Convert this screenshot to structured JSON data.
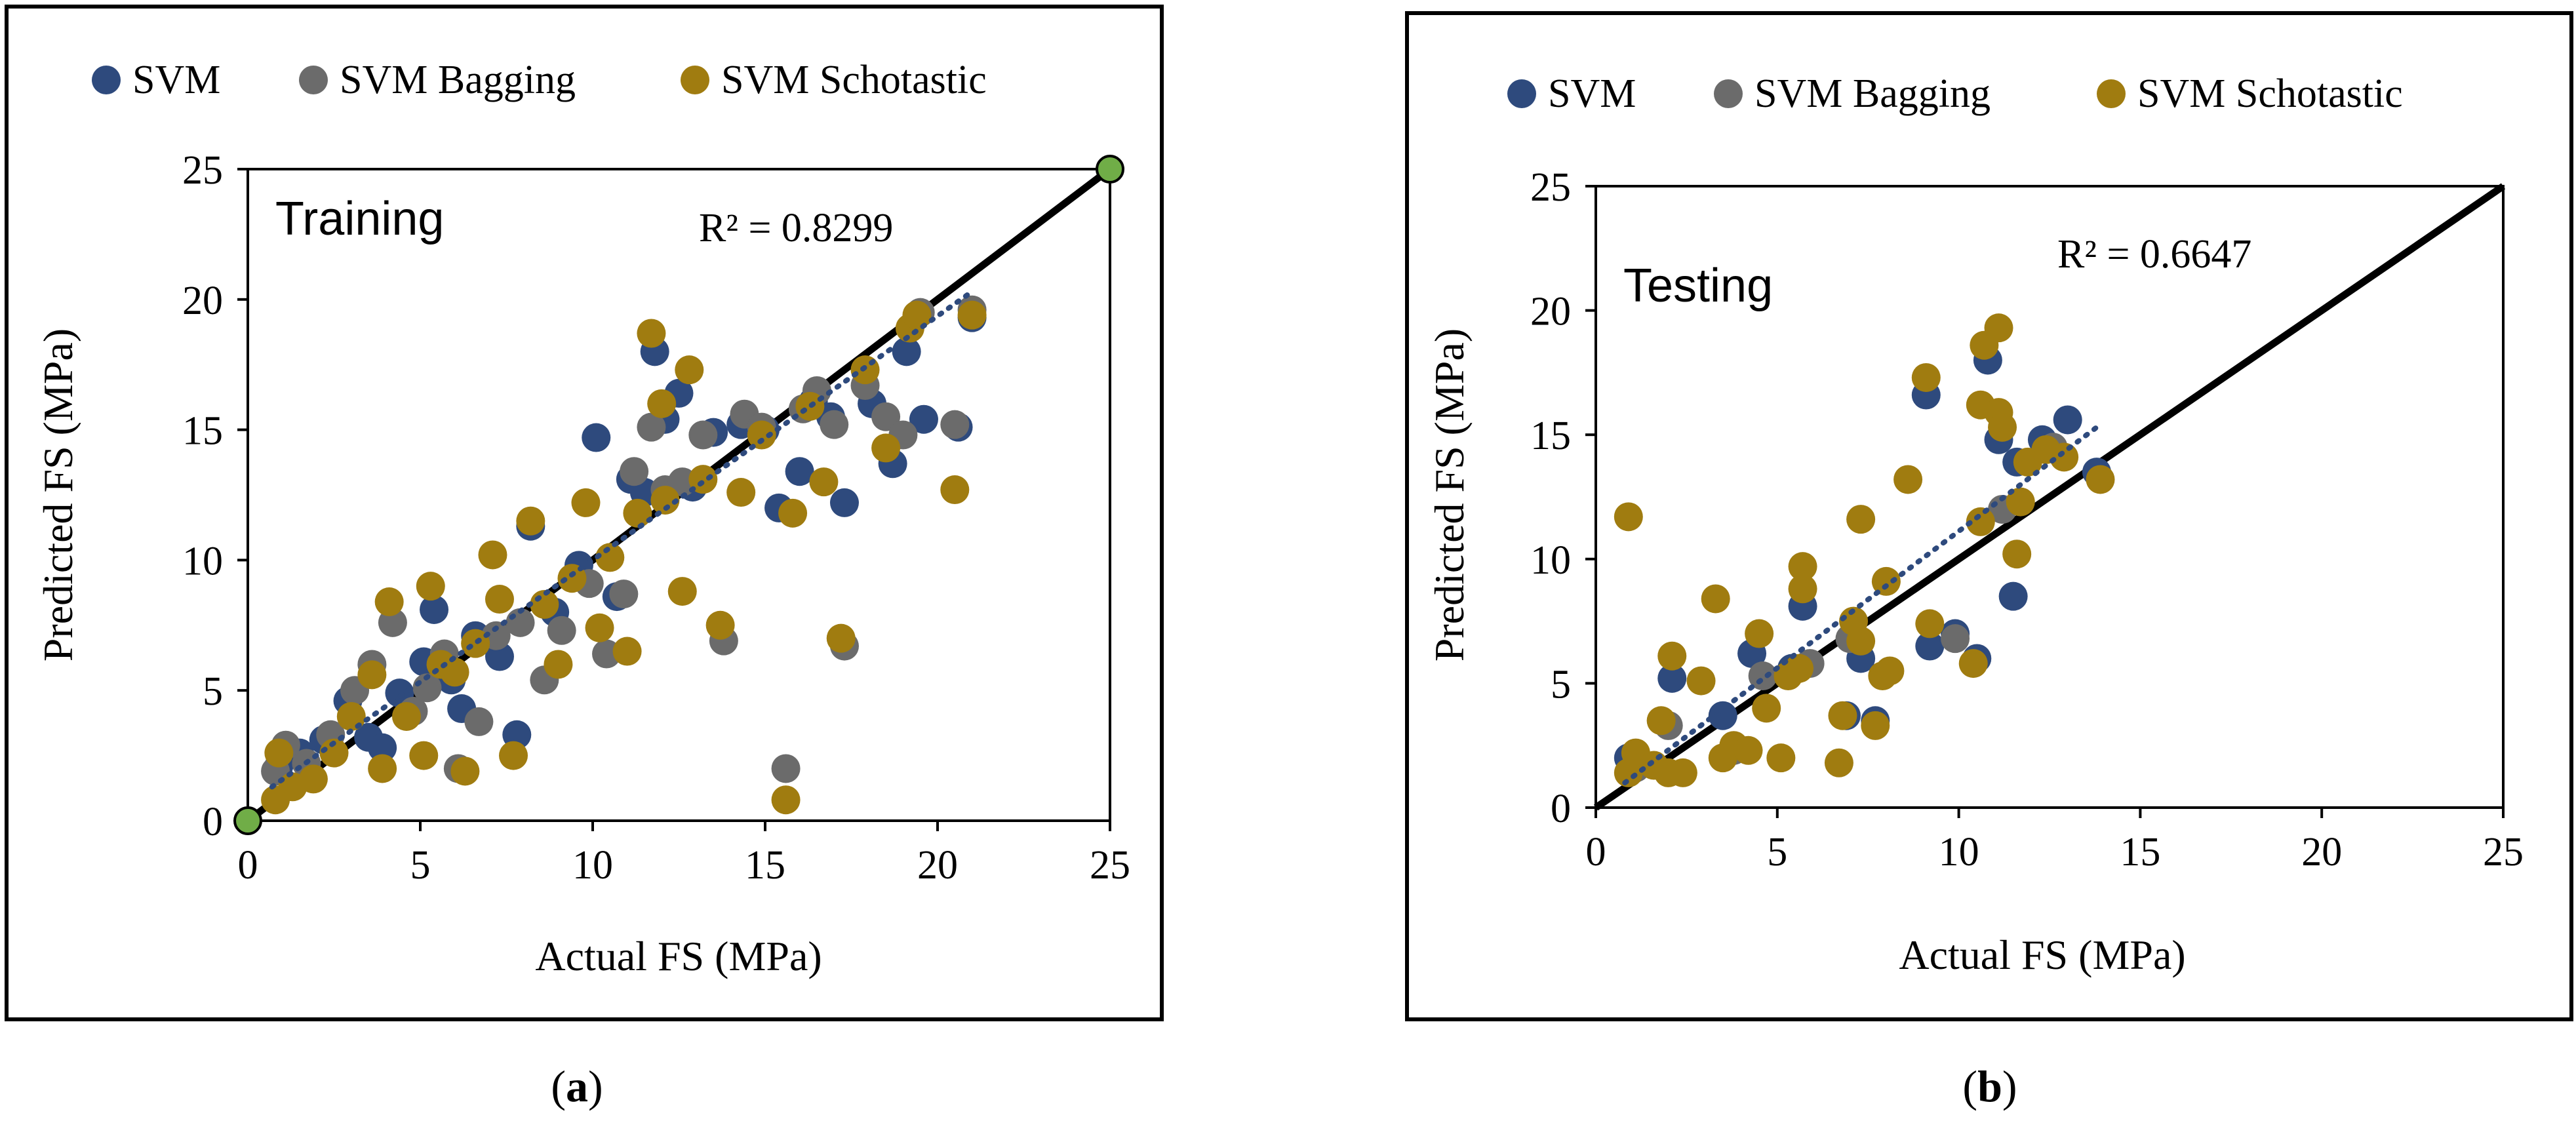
{
  "colors": {
    "svm": "#2e4a7d",
    "svm_bagging": "#6b6b6b",
    "svm_stochastic": "#a07c10",
    "endpoint": "#70ad47",
    "trend": "#2e4a7d",
    "ideal": "#000000"
  },
  "legend": {
    "svm": "SVM",
    "svm_bagging": "SVM Bagging",
    "svm_stochastic": "SVM Schotastic"
  },
  "chart_data": [
    {
      "type": "scatter",
      "panel_label": "(a)",
      "annotation": "Training",
      "r2_text": "R² = 0.8299",
      "xlabel": "Actual FS (MPa)",
      "ylabel": "Predicted FS (MPa)",
      "xlim": [
        0,
        25
      ],
      "ylim": [
        0,
        25
      ],
      "xticks": [
        "0",
        "5",
        "10",
        "15",
        "20",
        "25"
      ],
      "yticks": [
        "0",
        "5",
        "10",
        "15",
        "20",
        "25"
      ],
      "legend_position": "top",
      "grid": false,
      "ideal_line": [
        [
          0,
          0
        ],
        [
          25,
          25
        ]
      ],
      "endpoints": [
        [
          0,
          0
        ],
        [
          25,
          25
        ]
      ],
      "trendline": [
        [
          0.7,
          1.3
        ],
        [
          21,
          20.3
        ]
      ],
      "series": [
        {
          "name": "SVM",
          "points": [
            [
              0.9,
              2.1
            ],
            [
              1.5,
              2.6
            ],
            [
              2.2,
              3.1
            ],
            [
              2.9,
              4.6
            ],
            [
              3.5,
              3.2
            ],
            [
              3.9,
              2.8
            ],
            [
              4.4,
              4.9
            ],
            [
              5.1,
              6.1
            ],
            [
              5.4,
              8.1
            ],
            [
              5.9,
              5.4
            ],
            [
              6.2,
              4.3
            ],
            [
              6.6,
              7.1
            ],
            [
              7.3,
              6.3
            ],
            [
              7.8,
              3.3
            ],
            [
              8.2,
              11.3
            ],
            [
              8.9,
              8.0
            ],
            [
              9.6,
              9.8
            ],
            [
              10.1,
              14.7
            ],
            [
              10.7,
              8.6
            ],
            [
              11.1,
              13.1
            ],
            [
              11.5,
              12.6
            ],
            [
              11.8,
              18.0
            ],
            [
              12.1,
              15.4
            ],
            [
              12.5,
              16.4
            ],
            [
              12.9,
              12.8
            ],
            [
              13.5,
              14.9
            ],
            [
              14.3,
              15.2
            ],
            [
              15.0,
              15.0
            ],
            [
              15.4,
              12.0
            ],
            [
              16.0,
              13.4
            ],
            [
              16.4,
              16.1
            ],
            [
              16.9,
              15.5
            ],
            [
              17.3,
              12.2
            ],
            [
              18.1,
              16.0
            ],
            [
              18.7,
              13.7
            ],
            [
              19.1,
              18.0
            ],
            [
              19.6,
              15.4
            ],
            [
              20.6,
              15.1
            ],
            [
              21.0,
              19.3
            ]
          ]
        },
        {
          "name": "SVM Bagging",
          "points": [
            [
              0.8,
              1.9
            ],
            [
              1.1,
              2.9
            ],
            [
              1.7,
              2.2
            ],
            [
              2.4,
              3.3
            ],
            [
              3.1,
              5.0
            ],
            [
              3.6,
              6.0
            ],
            [
              4.2,
              7.6
            ],
            [
              4.8,
              4.2
            ],
            [
              5.2,
              5.1
            ],
            [
              5.7,
              6.4
            ],
            [
              6.1,
              2.0
            ],
            [
              6.7,
              3.8
            ],
            [
              7.2,
              7.1
            ],
            [
              7.9,
              7.6
            ],
            [
              8.6,
              5.4
            ],
            [
              9.1,
              7.3
            ],
            [
              9.9,
              9.1
            ],
            [
              10.4,
              6.4
            ],
            [
              10.9,
              8.7
            ],
            [
              11.2,
              13.4
            ],
            [
              11.7,
              15.1
            ],
            [
              12.1,
              12.7
            ],
            [
              12.6,
              13.0
            ],
            [
              13.2,
              14.8
            ],
            [
              13.8,
              6.9
            ],
            [
              14.4,
              15.6
            ],
            [
              14.9,
              15.1
            ],
            [
              15.6,
              2.0
            ],
            [
              16.1,
              15.8
            ],
            [
              16.5,
              16.5
            ],
            [
              17.0,
              15.2
            ],
            [
              17.3,
              6.7
            ],
            [
              17.9,
              16.7
            ],
            [
              18.5,
              15.5
            ],
            [
              19.0,
              14.8
            ],
            [
              19.5,
              19.5
            ],
            [
              20.5,
              15.2
            ],
            [
              21.0,
              19.6
            ]
          ]
        },
        {
          "name": "SVM Schotastic",
          "points": [
            [
              0.8,
              0.8
            ],
            [
              0.9,
              2.6
            ],
            [
              1.3,
              1.3
            ],
            [
              1.9,
              1.6
            ],
            [
              2.5,
              2.6
            ],
            [
              3.0,
              4.0
            ],
            [
              3.6,
              5.6
            ],
            [
              3.9,
              2.0
            ],
            [
              4.1,
              8.4
            ],
            [
              4.6,
              4.0
            ],
            [
              5.1,
              2.5
            ],
            [
              5.3,
              9.0
            ],
            [
              5.6,
              6.0
            ],
            [
              6.0,
              5.7
            ],
            [
              6.3,
              1.9
            ],
            [
              6.6,
              6.8
            ],
            [
              7.1,
              10.2
            ],
            [
              7.3,
              8.5
            ],
            [
              7.7,
              2.5
            ],
            [
              8.2,
              11.5
            ],
            [
              8.6,
              8.3
            ],
            [
              9.0,
              6.0
            ],
            [
              9.4,
              9.3
            ],
            [
              9.8,
              12.2
            ],
            [
              10.2,
              7.4
            ],
            [
              10.5,
              10.1
            ],
            [
              11.0,
              6.5
            ],
            [
              11.3,
              11.8
            ],
            [
              11.7,
              18.7
            ],
            [
              12.0,
              16.0
            ],
            [
              12.1,
              12.3
            ],
            [
              12.6,
              8.8
            ],
            [
              12.8,
              17.3
            ],
            [
              13.2,
              13.1
            ],
            [
              13.7,
              7.5
            ],
            [
              14.3,
              12.6
            ],
            [
              14.9,
              14.8
            ],
            [
              15.6,
              0.8
            ],
            [
              15.8,
              11.8
            ],
            [
              16.3,
              15.9
            ],
            [
              16.7,
              13.0
            ],
            [
              17.2,
              7.0
            ],
            [
              17.9,
              17.3
            ],
            [
              18.5,
              14.3
            ],
            [
              19.2,
              18.9
            ],
            [
              19.4,
              19.4
            ],
            [
              20.5,
              12.7
            ],
            [
              21.0,
              19.4
            ]
          ]
        }
      ]
    },
    {
      "type": "scatter",
      "panel_label": "(b)",
      "annotation": "Testing",
      "r2_text": "R² = 0.6647",
      "xlabel": "Actual FS (MPa)",
      "ylabel": "Predicted  FS (MPa)",
      "xlim": [
        0,
        25
      ],
      "ylim": [
        0,
        25
      ],
      "xticks": [
        "0",
        "5",
        "10",
        "15",
        "20",
        "25"
      ],
      "yticks": [
        "0",
        "5",
        "10",
        "15",
        "20",
        "25"
      ],
      "legend_position": "top",
      "grid": false,
      "ideal_line": [
        [
          0,
          0
        ],
        [
          25,
          25
        ]
      ],
      "trendline": [
        [
          0.8,
          1.0
        ],
        [
          13.8,
          15.3
        ]
      ],
      "series": [
        {
          "name": "SVM",
          "points": [
            [
              0.9,
              2.0
            ],
            [
              2.1,
              5.2
            ],
            [
              3.5,
              3.7
            ],
            [
              4.3,
              6.2
            ],
            [
              5.4,
              5.6
            ],
            [
              5.7,
              8.1
            ],
            [
              6.9,
              3.7
            ],
            [
              7.3,
              6.0
            ],
            [
              7.7,
              3.5
            ],
            [
              9.1,
              16.6
            ],
            [
              9.2,
              6.5
            ],
            [
              9.9,
              7.0
            ],
            [
              10.5,
              6.0
            ],
            [
              10.8,
              18.0
            ],
            [
              11.1,
              14.8
            ],
            [
              11.5,
              8.5
            ],
            [
              11.6,
              13.9
            ],
            [
              12.3,
              14.8
            ],
            [
              13.0,
              15.6
            ],
            [
              13.8,
              13.5
            ]
          ]
        },
        {
          "name": "SVM Bagging",
          "points": [
            [
              1.1,
              1.6
            ],
            [
              2.0,
              3.3
            ],
            [
              3.8,
              2.3
            ],
            [
              4.6,
              5.3
            ],
            [
              5.9,
              5.8
            ],
            [
              7.0,
              6.8
            ],
            [
              9.9,
              6.8
            ],
            [
              11.2,
              12.0
            ],
            [
              12.6,
              14.5
            ]
          ]
        },
        {
          "name": "SVM Schotastic",
          "points": [
            [
              0.9,
              11.7
            ],
            [
              0.9,
              1.4
            ],
            [
              1.1,
              2.2
            ],
            [
              1.6,
              1.7
            ],
            [
              1.8,
              3.5
            ],
            [
              2.0,
              1.4
            ],
            [
              2.1,
              6.1
            ],
            [
              2.4,
              1.4
            ],
            [
              2.9,
              5.1
            ],
            [
              3.3,
              8.4
            ],
            [
              3.5,
              2.0
            ],
            [
              3.8,
              2.5
            ],
            [
              4.2,
              2.3
            ],
            [
              4.5,
              7.0
            ],
            [
              4.7,
              4.0
            ],
            [
              5.1,
              2.0
            ],
            [
              5.3,
              5.3
            ],
            [
              5.6,
              5.6
            ],
            [
              5.7,
              8.8
            ],
            [
              5.7,
              9.7
            ],
            [
              6.7,
              1.8
            ],
            [
              6.8,
              3.7
            ],
            [
              7.1,
              7.5
            ],
            [
              7.3,
              11.6
            ],
            [
              7.3,
              6.7
            ],
            [
              7.7,
              3.3
            ],
            [
              7.9,
              5.3
            ],
            [
              8.0,
              9.1
            ],
            [
              8.1,
              5.5
            ],
            [
              8.6,
              13.2
            ],
            [
              9.1,
              17.3
            ],
            [
              9.2,
              7.4
            ],
            [
              10.4,
              5.8
            ],
            [
              10.6,
              16.2
            ],
            [
              10.6,
              11.5
            ],
            [
              10.7,
              18.6
            ],
            [
              11.1,
              19.3
            ],
            [
              11.1,
              15.9
            ],
            [
              11.2,
              15.3
            ],
            [
              11.6,
              10.2
            ],
            [
              11.7,
              12.3
            ],
            [
              11.9,
              13.9
            ],
            [
              12.4,
              14.4
            ],
            [
              12.9,
              14.1
            ],
            [
              13.9,
              13.2
            ]
          ]
        }
      ]
    }
  ]
}
